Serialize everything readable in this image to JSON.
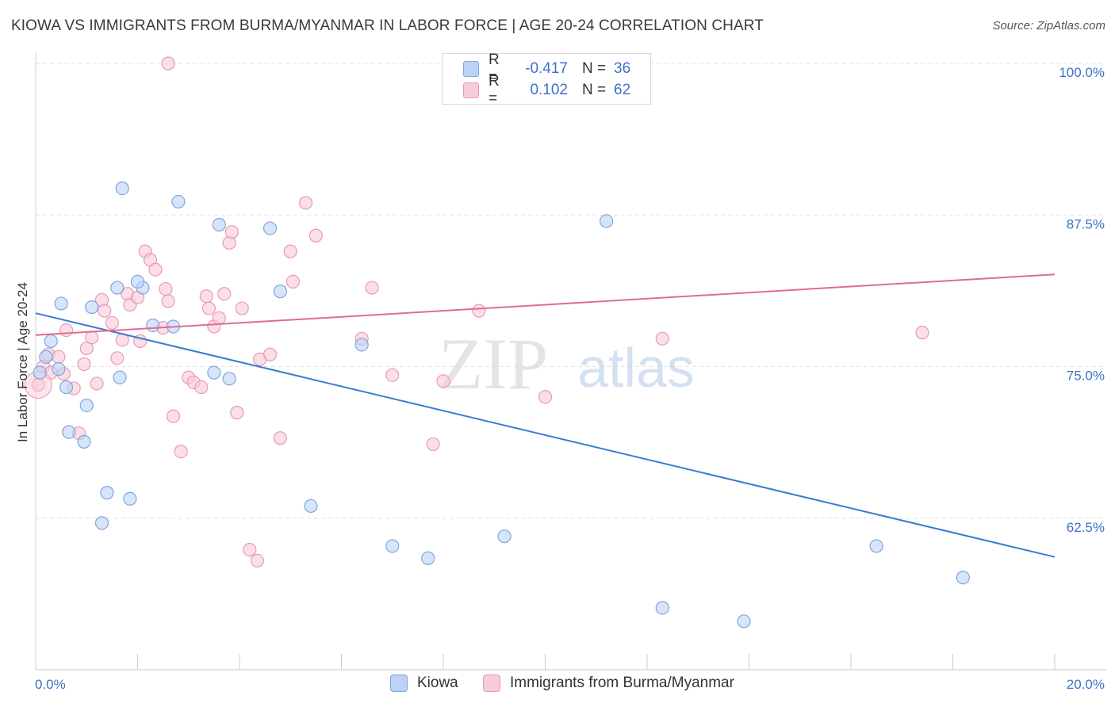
{
  "header": {
    "title": "KIOWA VS IMMIGRANTS FROM BURMA/MYANMAR IN LABOR FORCE | AGE 20-24 CORRELATION CHART",
    "source": "Source: ZipAtlas.com"
  },
  "watermark": {
    "zip": "ZIP",
    "atlas": "atlas"
  },
  "legend": {
    "rows": [
      {
        "r_label": "R =",
        "r_value": "-0.417",
        "n_label": "N =",
        "n_value": "36"
      },
      {
        "r_label": "R =",
        "r_value": "0.102",
        "n_label": "N =",
        "n_value": "62"
      }
    ]
  },
  "bottom_legend": {
    "series1": "Kiowa",
    "series2": "Immigrants from Burma/Myanmar"
  },
  "colors": {
    "blue_fill": "#bcd3f5",
    "blue_stroke": "#7ea6e0",
    "blue_line": "#3a7bd5",
    "pink_fill": "#f9cad8",
    "pink_stroke": "#e89ab3",
    "pink_line": "#e06b95",
    "axis_label": "#3b72c6",
    "grid": "#e3e3e3"
  },
  "chart_data": {
    "type": "scatter",
    "ylabel": "In Labor Force | Age 20-24",
    "xlim": [
      0,
      20
    ],
    "ylim": [
      50,
      100
    ],
    "x_tick_labels": [
      "0.0%",
      "20.0%"
    ],
    "y_ticks": [
      62.5,
      75.0,
      87.5,
      100.0
    ],
    "y_tick_labels": [
      "62.5%",
      "75.0%",
      "87.5%",
      "100.0%"
    ],
    "grid": true,
    "series": [
      {
        "name": "Kiowa",
        "r": -0.417,
        "n": 36,
        "trend": {
          "x": [
            0,
            20
          ],
          "y": [
            79.4,
            59.3
          ]
        },
        "points": [
          [
            0.08,
            74.5
          ],
          [
            0.2,
            75.8
          ],
          [
            0.3,
            77.1
          ],
          [
            0.45,
            74.8
          ],
          [
            0.5,
            80.2
          ],
          [
            0.6,
            73.3
          ],
          [
            0.65,
            69.6
          ],
          [
            0.95,
            68.8
          ],
          [
            1.0,
            71.8
          ],
          [
            1.1,
            79.9
          ],
          [
            1.3,
            62.1
          ],
          [
            1.4,
            64.6
          ],
          [
            1.6,
            81.5
          ],
          [
            1.65,
            74.1
          ],
          [
            1.85,
            64.1
          ],
          [
            2.1,
            81.5
          ],
          [
            2.3,
            78.4
          ],
          [
            2.7,
            78.3
          ],
          [
            3.5,
            74.5
          ],
          [
            3.8,
            74.0
          ],
          [
            2.0,
            82.0
          ],
          [
            1.7,
            89.7
          ],
          [
            2.8,
            88.6
          ],
          [
            3.6,
            86.7
          ],
          [
            4.6,
            86.4
          ],
          [
            4.8,
            81.2
          ],
          [
            5.4,
            63.5
          ],
          [
            6.4,
            76.8
          ],
          [
            7.0,
            60.2
          ],
          [
            7.7,
            59.2
          ],
          [
            9.2,
            61.0
          ],
          [
            11.2,
            87.0
          ],
          [
            16.5,
            60.2
          ],
          [
            18.2,
            57.6
          ],
          [
            13.9,
            54.0
          ],
          [
            12.3,
            55.1
          ]
        ]
      },
      {
        "name": "Immigrants from Burma/Myanmar",
        "r": 0.102,
        "n": 62,
        "trend": {
          "x": [
            0,
            20
          ],
          "y": [
            77.6,
            82.6
          ]
        },
        "points": [
          [
            0.05,
            73.5
          ],
          [
            0.15,
            75.0
          ],
          [
            0.25,
            76.0
          ],
          [
            0.3,
            74.5
          ],
          [
            0.45,
            75.8
          ],
          [
            0.55,
            74.4
          ],
          [
            0.6,
            78.0
          ],
          [
            0.75,
            73.2
          ],
          [
            0.85,
            69.5
          ],
          [
            0.95,
            75.2
          ],
          [
            1.0,
            76.5
          ],
          [
            1.1,
            77.4
          ],
          [
            1.2,
            73.6
          ],
          [
            1.3,
            80.5
          ],
          [
            1.35,
            79.6
          ],
          [
            1.5,
            78.6
          ],
          [
            1.6,
            75.7
          ],
          [
            1.7,
            77.2
          ],
          [
            1.8,
            81.0
          ],
          [
            1.85,
            80.1
          ],
          [
            2.0,
            80.7
          ],
          [
            2.05,
            77.1
          ],
          [
            2.15,
            84.5
          ],
          [
            2.25,
            83.8
          ],
          [
            2.35,
            83.0
          ],
          [
            2.5,
            78.2
          ],
          [
            2.55,
            81.4
          ],
          [
            2.6,
            80.4
          ],
          [
            2.7,
            70.9
          ],
          [
            2.85,
            68.0
          ],
          [
            3.0,
            74.1
          ],
          [
            3.1,
            73.7
          ],
          [
            3.25,
            73.3
          ],
          [
            3.35,
            80.8
          ],
          [
            3.4,
            79.8
          ],
          [
            3.5,
            78.3
          ],
          [
            3.6,
            79.0
          ],
          [
            3.7,
            81.0
          ],
          [
            3.8,
            85.2
          ],
          [
            3.85,
            86.1
          ],
          [
            3.95,
            71.2
          ],
          [
            4.05,
            79.8
          ],
          [
            4.2,
            59.9
          ],
          [
            4.35,
            59.0
          ],
          [
            4.4,
            75.6
          ],
          [
            4.6,
            76.0
          ],
          [
            4.8,
            69.1
          ],
          [
            5.0,
            84.5
          ],
          [
            5.05,
            82.0
          ],
          [
            5.3,
            88.5
          ],
          [
            5.5,
            85.8
          ],
          [
            6.4,
            77.3
          ],
          [
            6.6,
            81.5
          ],
          [
            7.0,
            74.3
          ],
          [
            7.8,
            68.6
          ],
          [
            8.0,
            73.8
          ],
          [
            8.7,
            79.6
          ],
          [
            10.0,
            72.5
          ],
          [
            12.3,
            77.3
          ],
          [
            17.4,
            77.8
          ],
          [
            2.6,
            100.0
          ],
          [
            9.0,
            100.0
          ]
        ]
      }
    ]
  }
}
